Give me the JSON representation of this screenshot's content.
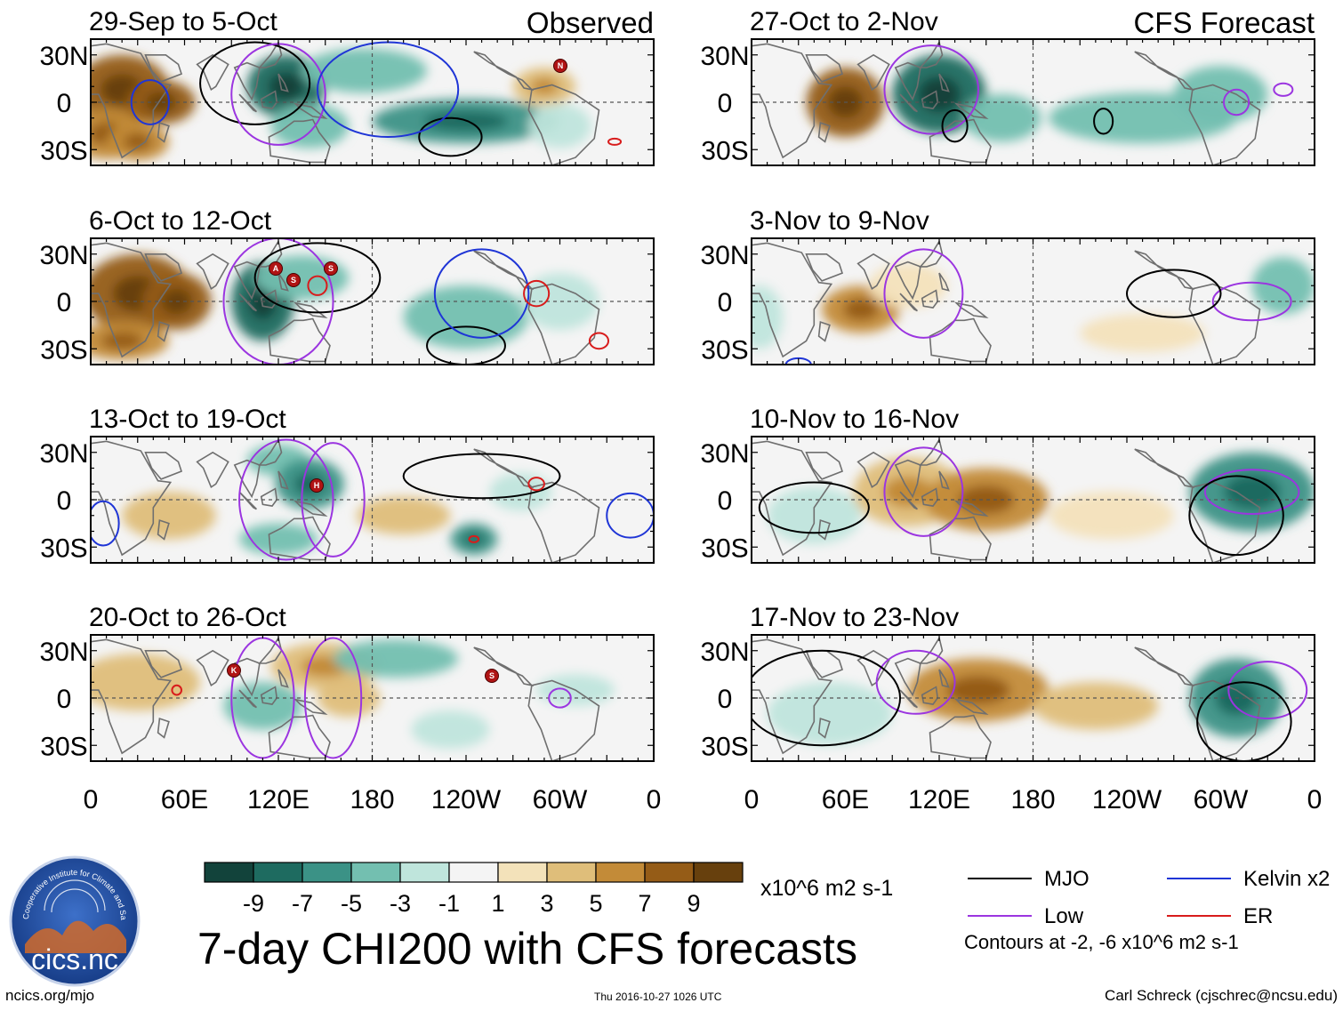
{
  "chart_data": {
    "type": "heatmap",
    "title": "7-day CHI200 with CFS forecasts",
    "headers": {
      "observed": "Observed",
      "forecast": "CFS Forecast"
    },
    "lat_ticks": [
      "30N",
      "0",
      "30S"
    ],
    "lon_ticks": [
      "0",
      "60E",
      "120E",
      "180",
      "120W",
      "60W",
      "0"
    ],
    "observed_panels": [
      {
        "period": "29-Sep to 5-Oct",
        "anomalies": [
          {
            "lon": 20,
            "lat": 8,
            "value": 8,
            "rx": 30,
            "ry": 22
          },
          {
            "lon": 45,
            "lat": 0,
            "value": 9,
            "rx": 22,
            "ry": 14
          },
          {
            "lon": 10,
            "lat": -20,
            "value": 6,
            "rx": 25,
            "ry": 16
          },
          {
            "lon": 30,
            "lat": -25,
            "value": 7,
            "rx": 20,
            "ry": 12
          },
          {
            "lon": 125,
            "lat": 10,
            "value": -7,
            "rx": 25,
            "ry": 20
          },
          {
            "lon": 175,
            "lat": 20,
            "value": -3,
            "rx": 40,
            "ry": 14
          },
          {
            "lon": 140,
            "lat": -15,
            "value": -4,
            "rx": 25,
            "ry": 14
          },
          {
            "lon": 240,
            "lat": -12,
            "value": -5,
            "rx": 60,
            "ry": 14
          },
          {
            "lon": 290,
            "lat": 10,
            "value": 5,
            "rx": 20,
            "ry": 12
          },
          {
            "lon": 300,
            "lat": -15,
            "value": -2,
            "rx": 20,
            "ry": 14
          }
        ],
        "contours": [
          {
            "kind": "MJO",
            "lon": 105,
            "lat": 12,
            "rx": 35,
            "ry": 26
          },
          {
            "kind": "MJO",
            "lon": 230,
            "lat": -22,
            "rx": 20,
            "ry": 12
          },
          {
            "kind": "Low",
            "lon": 120,
            "lat": 5,
            "rx": 30,
            "ry": 32
          },
          {
            "kind": "Kelvin",
            "lon": 38,
            "lat": 0,
            "rx": 12,
            "ry": 14
          },
          {
            "kind": "Kelvin",
            "lon": 190,
            "lat": 8,
            "rx": 45,
            "ry": 30
          },
          {
            "kind": "ER",
            "lon": 335,
            "lat": -25,
            "rx": 4,
            "ry": 2
          }
        ],
        "storms": [
          "N"
        ]
      },
      {
        "period": "6-Oct to 12-Oct",
        "anomalies": [
          {
            "lon": 30,
            "lat": 5,
            "value": 9,
            "rx": 35,
            "ry": 25
          },
          {
            "lon": 55,
            "lat": 0,
            "value": 9,
            "rx": 22,
            "ry": 18
          },
          {
            "lon": 20,
            "lat": -25,
            "value": 6,
            "rx": 30,
            "ry": 12
          },
          {
            "lon": 110,
            "lat": 0,
            "value": -7,
            "rx": 20,
            "ry": 25
          },
          {
            "lon": 135,
            "lat": 15,
            "value": -3,
            "rx": 30,
            "ry": 14
          },
          {
            "lon": 240,
            "lat": -10,
            "value": -3,
            "rx": 40,
            "ry": 20
          },
          {
            "lon": 300,
            "lat": 0,
            "value": -2,
            "rx": 25,
            "ry": 18
          }
        ],
        "contours": [
          {
            "kind": "MJO",
            "lon": 145,
            "lat": 15,
            "rx": 40,
            "ry": 22
          },
          {
            "kind": "MJO",
            "lon": 240,
            "lat": -28,
            "rx": 25,
            "ry": 12
          },
          {
            "kind": "Low",
            "lon": 120,
            "lat": 0,
            "rx": 35,
            "ry": 40
          },
          {
            "kind": "Kelvin",
            "lon": 250,
            "lat": 5,
            "rx": 30,
            "ry": 28
          },
          {
            "kind": "ER",
            "lon": 145,
            "lat": 10,
            "rx": 6,
            "ry": 6
          },
          {
            "kind": "ER",
            "lon": 285,
            "lat": 5,
            "rx": 8,
            "ry": 8
          },
          {
            "kind": "ER",
            "lon": 325,
            "lat": -25,
            "rx": 6,
            "ry": 5
          }
        ],
        "storms": [
          "A",
          "S",
          "S"
        ]
      },
      {
        "period": "13-Oct to 19-Oct",
        "anomalies": [
          {
            "lon": 50,
            "lat": -10,
            "value": 4,
            "rx": 30,
            "ry": 15
          },
          {
            "lon": 120,
            "lat": 25,
            "value": -3,
            "rx": 20,
            "ry": 10
          },
          {
            "lon": 140,
            "lat": 10,
            "value": -6,
            "rx": 22,
            "ry": 16
          },
          {
            "lon": 120,
            "lat": -25,
            "value": -3,
            "rx": 25,
            "ry": 10
          },
          {
            "lon": 200,
            "lat": -10,
            "value": 4,
            "rx": 30,
            "ry": 12
          },
          {
            "lon": 245,
            "lat": -25,
            "value": -6,
            "rx": 15,
            "ry": 10
          },
          {
            "lon": 275,
            "lat": 5,
            "value": -2,
            "rx": 20,
            "ry": 12
          }
        ],
        "contours": [
          {
            "kind": "MJO",
            "lon": 250,
            "lat": 15,
            "rx": 50,
            "ry": 14
          },
          {
            "kind": "Low",
            "lon": 125,
            "lat": 0,
            "rx": 30,
            "ry": 38
          },
          {
            "kind": "Low",
            "lon": 155,
            "lat": 0,
            "rx": 20,
            "ry": 36
          },
          {
            "kind": "Kelvin",
            "lon": 8,
            "lat": -15,
            "rx": 10,
            "ry": 14
          },
          {
            "kind": "Kelvin",
            "lon": 345,
            "lat": -10,
            "rx": 15,
            "ry": 14
          },
          {
            "kind": "ER",
            "lon": 245,
            "lat": -25,
            "rx": 3,
            "ry": 2
          },
          {
            "kind": "ER",
            "lon": 285,
            "lat": 10,
            "rx": 5,
            "ry": 4
          }
        ],
        "storms": [
          "H"
        ]
      },
      {
        "period": "20-Oct to 26-Oct",
        "anomalies": [
          {
            "lon": 30,
            "lat": 10,
            "value": 4,
            "rx": 40,
            "ry": 18
          },
          {
            "lon": 150,
            "lat": 20,
            "value": 5,
            "rx": 35,
            "ry": 15
          },
          {
            "lon": 165,
            "lat": 0,
            "value": 4,
            "rx": 20,
            "ry": 12
          },
          {
            "lon": 110,
            "lat": -5,
            "value": -3,
            "rx": 25,
            "ry": 15
          },
          {
            "lon": 195,
            "lat": 25,
            "value": -3,
            "rx": 40,
            "ry": 12
          },
          {
            "lon": 230,
            "lat": -20,
            "value": -2,
            "rx": 25,
            "ry": 12
          },
          {
            "lon": 310,
            "lat": 5,
            "value": -2,
            "rx": 25,
            "ry": 10
          }
        ],
        "contours": [
          {
            "kind": "Low",
            "lon": 110,
            "lat": 0,
            "rx": 20,
            "ry": 38
          },
          {
            "kind": "Low",
            "lon": 155,
            "lat": 0,
            "rx": 18,
            "ry": 38
          },
          {
            "kind": "Low",
            "lon": 300,
            "lat": 0,
            "rx": 7,
            "ry": 6
          },
          {
            "kind": "ER",
            "lon": 55,
            "lat": 5,
            "rx": 3,
            "ry": 3
          }
        ],
        "storms": [
          "K",
          "S"
        ]
      }
    ],
    "forecast_panels": [
      {
        "period": "27-Oct to 2-Nov",
        "anomalies": [
          {
            "lon": 60,
            "lat": 0,
            "value": 9,
            "rx": 25,
            "ry": 22
          },
          {
            "lon": 120,
            "lat": 5,
            "value": -7,
            "rx": 30,
            "ry": 25
          },
          {
            "lon": 160,
            "lat": -10,
            "value": -3,
            "rx": 25,
            "ry": 15
          },
          {
            "lon": 250,
            "lat": -10,
            "value": -4,
            "rx": 60,
            "ry": 16
          },
          {
            "lon": 300,
            "lat": 5,
            "value": -3,
            "rx": 30,
            "ry": 18
          }
        ],
        "contours": [
          {
            "kind": "Low",
            "lon": 115,
            "lat": 8,
            "rx": 30,
            "ry": 28
          },
          {
            "kind": "Low",
            "lon": 310,
            "lat": 0,
            "rx": 8,
            "ry": 8
          },
          {
            "kind": "Low",
            "lon": 340,
            "lat": 8,
            "rx": 6,
            "ry": 4
          },
          {
            "kind": "MJO",
            "lon": 130,
            "lat": -15,
            "rx": 8,
            "ry": 10
          },
          {
            "kind": "MJO",
            "lon": 225,
            "lat": -12,
            "rx": 6,
            "ry": 8
          }
        ],
        "storms": []
      },
      {
        "period": "3-Nov to 9-Nov",
        "anomalies": [
          {
            "lon": 70,
            "lat": -5,
            "value": 6,
            "rx": 25,
            "ry": 15
          },
          {
            "lon": 100,
            "lat": 10,
            "value": 3,
            "rx": 25,
            "ry": 14
          },
          {
            "lon": 5,
            "lat": -10,
            "value": -2,
            "rx": 15,
            "ry": 20
          },
          {
            "lon": 340,
            "lat": 10,
            "value": -3,
            "rx": 20,
            "ry": 18
          },
          {
            "lon": 250,
            "lat": -20,
            "value": 3,
            "rx": 40,
            "ry": 12
          }
        ],
        "contours": [
          {
            "kind": "Low",
            "lon": 110,
            "lat": 5,
            "rx": 25,
            "ry": 28
          },
          {
            "kind": "Low",
            "lon": 320,
            "lat": 0,
            "rx": 25,
            "ry": 12
          },
          {
            "kind": "MJO",
            "lon": 270,
            "lat": 5,
            "rx": 30,
            "ry": 15
          },
          {
            "kind": "Kelvin",
            "lon": 30,
            "lat": -40,
            "rx": 8,
            "ry": 4
          }
        ],
        "storms": []
      },
      {
        "period": "10-Nov to 16-Nov",
        "anomalies": [
          {
            "lon": 100,
            "lat": 5,
            "value": 5,
            "rx": 35,
            "ry": 22
          },
          {
            "lon": 150,
            "lat": 0,
            "value": 6,
            "rx": 40,
            "ry": 20
          },
          {
            "lon": 320,
            "lat": 5,
            "value": -5,
            "rx": 40,
            "ry": 25
          },
          {
            "lon": 40,
            "lat": -10,
            "value": -2,
            "rx": 30,
            "ry": 18
          },
          {
            "lon": 230,
            "lat": -10,
            "value": 3,
            "rx": 40,
            "ry": 15
          }
        ],
        "contours": [
          {
            "kind": "Low",
            "lon": 110,
            "lat": 5,
            "rx": 25,
            "ry": 28
          },
          {
            "kind": "Low",
            "lon": 320,
            "lat": 5,
            "rx": 30,
            "ry": 14
          },
          {
            "kind": "MJO",
            "lon": 40,
            "lat": -5,
            "rx": 35,
            "ry": 16
          },
          {
            "kind": "MJO",
            "lon": 310,
            "lat": -10,
            "rx": 30,
            "ry": 25
          }
        ],
        "storms": []
      },
      {
        "period": "17-Nov to 23-Nov",
        "anomalies": [
          {
            "lon": 145,
            "lat": 5,
            "value": 6,
            "rx": 45,
            "ry": 20
          },
          {
            "lon": 220,
            "lat": -5,
            "value": 4,
            "rx": 40,
            "ry": 15
          },
          {
            "lon": 310,
            "lat": 0,
            "value": -5,
            "rx": 30,
            "ry": 25
          },
          {
            "lon": 50,
            "lat": -10,
            "value": -2,
            "rx": 40,
            "ry": 20
          }
        ],
        "contours": [
          {
            "kind": "Low",
            "lon": 105,
            "lat": 10,
            "rx": 25,
            "ry": 20
          },
          {
            "kind": "Low",
            "lon": 330,
            "lat": 5,
            "rx": 25,
            "ry": 18
          },
          {
            "kind": "MJO",
            "lon": 45,
            "lat": 0,
            "rx": 50,
            "ry": 30
          },
          {
            "kind": "MJO",
            "lon": 315,
            "lat": -15,
            "rx": 30,
            "ry": 25
          }
        ],
        "storms": []
      }
    ],
    "colorbar": {
      "labels": [
        "-9",
        "-7",
        "-5",
        "-3",
        "-1",
        "1",
        "3",
        "5",
        "7",
        "9"
      ],
      "colors": [
        "#12433b",
        "#1e6b60",
        "#3b9286",
        "#73bfb0",
        "#bfe5dc",
        "#f4f4f4",
        "#f3e2ba",
        "#dfbe7a",
        "#c38b38",
        "#955c17",
        "#67400d"
      ],
      "units": "x10^6 m2 s-1"
    },
    "legend": {
      "entries": [
        {
          "label": "MJO",
          "color": "#000000"
        },
        {
          "label": "Kelvin x2",
          "color": "#1f35d6"
        },
        {
          "label": "Low",
          "color": "#9b35e0"
        },
        {
          "label": "ER",
          "color": "#d81c1c"
        }
      ],
      "note": "Contours at -2, -6 x10^6 m2 s-1"
    }
  },
  "logo": {
    "org": "Cooperative Institute for Climate and Satellites",
    "short": "cics.nc"
  },
  "footer": {
    "url": "ncics.org/mjo",
    "timestamp": "Thu 2016-10-27 1026 UTC",
    "author": "Carl Schreck (cjschrec@ncsu.edu)"
  }
}
